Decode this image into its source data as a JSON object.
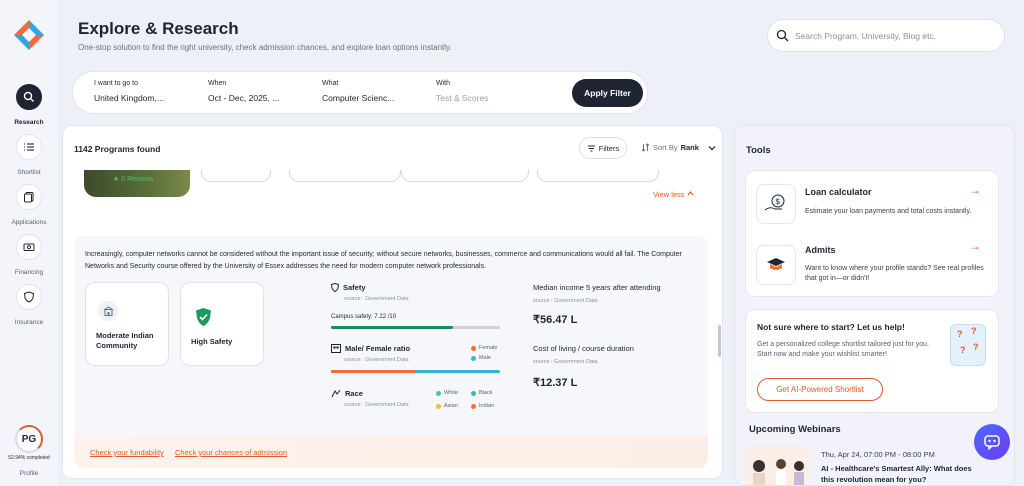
{
  "header": {
    "title": "Explore & Research",
    "subtitle": "One-stop solution to find the right university, check admission chances, and explore loan options instantly."
  },
  "search": {
    "placeholder": "Search Program, University, Blog etc.",
    "value": ""
  },
  "sidebar": {
    "items": [
      {
        "label": "Research",
        "icon": "search-icon"
      },
      {
        "label": "Shortlist",
        "icon": "list-icon"
      },
      {
        "label": "Applications",
        "icon": "documents-icon"
      },
      {
        "label": "Financing",
        "icon": "money-icon"
      },
      {
        "label": "Insurance",
        "icon": "shield-icon"
      }
    ],
    "profile": {
      "initials": "PG",
      "completion": "52.94% completed",
      "completion_fraction": 0.5294,
      "label": "Profile"
    }
  },
  "filter": {
    "destination": {
      "label": "I want to go to",
      "value": "United Kingdom,..."
    },
    "when": {
      "label": "When",
      "value": "Oct - Dec, 2025, ..."
    },
    "what": {
      "label": "What",
      "value": "Computer Scienc..."
    },
    "with": {
      "label": "With",
      "placeholder": "Test & Scores"
    },
    "apply_label": "Apply Filter"
  },
  "results": {
    "count_text": "1142 Programs found",
    "filters_label": "Filters",
    "sort_label": "Sort By",
    "sort_value": "Rank",
    "reviews_text": "0 Reviews",
    "view_less": "View less",
    "description": "Increasingly, computer networks cannot be considered without the important issue of security; without secure networks, businesses, commerce and communications would all fail. The Computer Networks and Security course offered by the University of Essex addresses the need for modern computer network professionals.",
    "features": [
      {
        "label": "Moderate Indian Community",
        "icon": "community-icon"
      },
      {
        "label": "High Safety",
        "icon": "safety-shield-icon"
      }
    ],
    "safety": {
      "title": "Safety",
      "source": "source : Government Data",
      "campus_label": "Campus safety: 7.22 /10",
      "score": 7.22,
      "max": 10
    },
    "gender": {
      "title": "Male/ Female ratio",
      "source": "source : Government Data",
      "female_label": "Female",
      "male_label": "Male",
      "female_share": 0.5
    },
    "race": {
      "title": "Race",
      "source": "source : Government Data",
      "legend": [
        {
          "label": "White",
          "color": "#3fc79a"
        },
        {
          "label": "Black",
          "color": "#35b6d6"
        },
        {
          "label": "Asian",
          "color": "#f2c230"
        },
        {
          "label": "Indian",
          "color": "#f26b3a"
        }
      ]
    },
    "income": {
      "title": "Median income 5 years after attending",
      "source": "source : Government Data",
      "value": "₹56.47 L"
    },
    "living": {
      "title": "Cost of living / course duration",
      "source": "source : Government Data",
      "value": "₹12.37 L"
    },
    "links": {
      "fundability": "Check your fundability",
      "admission": "Check your chances of admission"
    }
  },
  "tools": {
    "title": "Tools",
    "items": [
      {
        "name": "Loan calculator",
        "desc": "Estimate your loan payments and total costs instantly.",
        "icon": "loan-calculator-icon",
        "arrow": "→"
      },
      {
        "name": "Admits",
        "desc": "Want to know where your profile stands? See real profiles that got in—or didn't!",
        "icon": "graduation-cap-icon",
        "arrow": "→"
      }
    ],
    "help": {
      "title": "Not sure where to start? Let us help!",
      "desc": "Get a personalized college shortlist tailored just for you. Start now and make your wishlist smarter!",
      "button": "Get AI-Powered Shortlist",
      "question_mark": "?"
    },
    "webinars": {
      "title": "Upcoming Webinars",
      "items": [
        {
          "date": "Thu, Apr 24, 07:00 PM - 08:00 PM",
          "title": "AI - Healthcare's Smartest Ally: What does this revolution mean for you?"
        }
      ]
    }
  },
  "colors": {
    "accent": "#e25a2c",
    "dark": "#1f2433",
    "safety_green": "#1a8a5a",
    "female": "#f26b3a",
    "male": "#35b6d6"
  }
}
